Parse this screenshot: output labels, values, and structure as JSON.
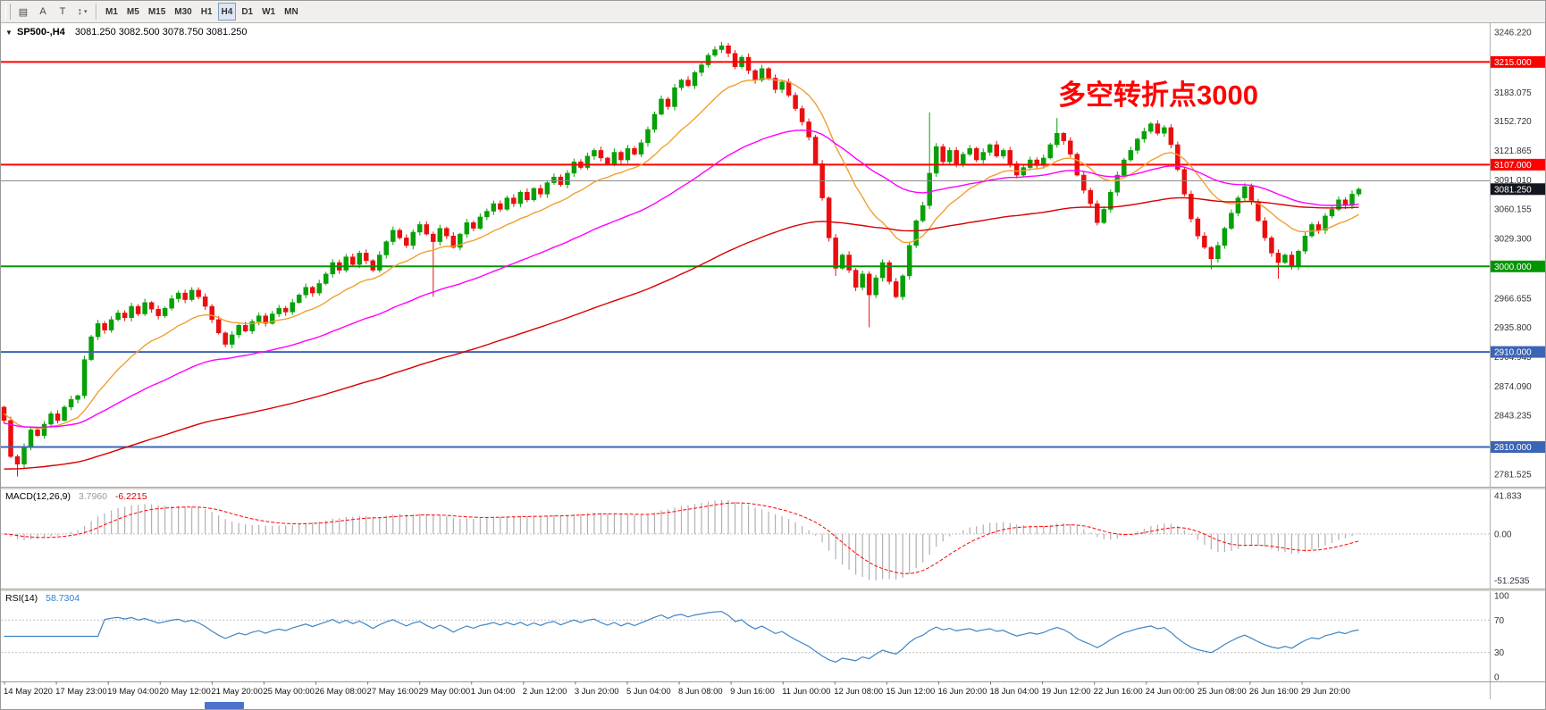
{
  "toolbar": {
    "tools": [
      {
        "name": "chart-mode",
        "glyph": "▤"
      },
      {
        "name": "text-label",
        "glyph": "A"
      },
      {
        "name": "text",
        "glyph": "T"
      },
      {
        "name": "objects",
        "glyph": "↕",
        "dropdown": "▾"
      }
    ],
    "timeframes": [
      {
        "label": "M1",
        "active": false
      },
      {
        "label": "M5",
        "active": false
      },
      {
        "label": "M15",
        "active": false
      },
      {
        "label": "M30",
        "active": false
      },
      {
        "label": "H1",
        "active": false
      },
      {
        "label": "H4",
        "active": true
      },
      {
        "label": "D1",
        "active": false
      },
      {
        "label": "W1",
        "active": false
      },
      {
        "label": "MN",
        "active": false
      }
    ]
  },
  "chart": {
    "title_marker": "▼",
    "title_symbol": "SP500-,H4",
    "title_ohlc": "3081.250 3082.500 3078.750 3081.250",
    "annotation": {
      "text": "多空转折点3000",
      "color": "#ff0000"
    }
  },
  "indicators": {
    "macd": {
      "label": "MACD(12,26,9)",
      "value_main": "3.7960",
      "value_signal": "-6.2215"
    },
    "rsi": {
      "label": "RSI(14)",
      "value": "58.7304"
    }
  },
  "chart_data": {
    "type": "candlestick",
    "symbol": "SP500-",
    "timeframe": "H4",
    "candle_up_color": "#07a007",
    "candle_down_color": "#ea0e0e",
    "open_first": 2852,
    "closes": [
      2838,
      2800,
      2792,
      2810,
      2828,
      2822,
      2834,
      2845,
      2838,
      2852,
      2860,
      2864,
      2902,
      2926,
      2940,
      2933,
      2944,
      2951,
      2946,
      2958,
      2950,
      2962,
      2955,
      2948,
      2956,
      2966,
      2972,
      2965,
      2975,
      2968,
      2958,
      2944,
      2930,
      2918,
      2928,
      2938,
      2932,
      2942,
      2948,
      2940,
      2950,
      2956,
      2952,
      2962,
      2970,
      2978,
      2972,
      2982,
      2992,
      3004,
      2996,
      3010,
      3002,
      3014,
      3006,
      2996,
      3012,
      3026,
      3038,
      3030,
      3022,
      3036,
      3044,
      3034,
      3026,
      3040,
      3032,
      3020,
      3034,
      3046,
      3040,
      3052,
      3058,
      3066,
      3060,
      3072,
      3066,
      3078,
      3070,
      3082,
      3076,
      3088,
      3094,
      3086,
      3098,
      3110,
      3104,
      3116,
      3122,
      3114,
      3108,
      3120,
      3112,
      3124,
      3118,
      3130,
      3144,
      3160,
      3176,
      3168,
      3188,
      3196,
      3190,
      3204,
      3212,
      3222,
      3228,
      3232,
      3224,
      3210,
      3220,
      3206,
      3196,
      3208,
      3198,
      3186,
      3194,
      3180,
      3166,
      3152,
      3136,
      3108,
      3072,
      3030,
      2998,
      3012,
      2996,
      2978,
      2992,
      2970,
      2988,
      3004,
      2984,
      2968,
      2990,
      3022,
      3048,
      3064,
      3098,
      3126,
      3110,
      3122,
      3108,
      3118,
      3124,
      3112,
      3120,
      3128,
      3116,
      3122,
      3108,
      3096,
      3104,
      3112,
      3106,
      3114,
      3128,
      3140,
      3132,
      3118,
      3096,
      3080,
      3066,
      3046,
      3060,
      3078,
      3096,
      3112,
      3122,
      3134,
      3142,
      3150,
      3140,
      3146,
      3128,
      3102,
      3076,
      3050,
      3032,
      3020,
      3008,
      3022,
      3040,
      3056,
      3072,
      3084,
      3068,
      3048,
      3030,
      3014,
      3004,
      3012,
      3000,
      3016,
      3032,
      3044,
      3038,
      3053,
      3060,
      3070,
      3064,
      3076,
      3081.25
    ],
    "wick_overrides": [
      [
        2,
        "low",
        2779
      ],
      [
        64,
        "low",
        2968
      ],
      [
        107,
        "high",
        3236
      ],
      [
        124,
        "low",
        2990
      ],
      [
        129,
        "low",
        2936
      ],
      [
        138,
        "high",
        3162
      ],
      [
        157,
        "high",
        3156
      ],
      [
        180,
        "low",
        2997
      ],
      [
        190,
        "low",
        2987
      ]
    ],
    "last_price": 3081.25,
    "price_axis": {
      "min": 2772,
      "max": 3252,
      "grid_labels": [
        "3246.220",
        "3183.075",
        "3152.720",
        "3121.865",
        "3091.010",
        "3060.155",
        "3029.300",
        "2966.655",
        "2935.800",
        "2904.945",
        "2874.090",
        "2843.235",
        "2781.525"
      ]
    },
    "hlines": [
      {
        "price": 3215.0,
        "label": "3215.000",
        "color": "#ff0000",
        "width": 2
      },
      {
        "price": 3107.0,
        "label": "3107.000",
        "color": "#ff0000",
        "width": 2
      },
      {
        "price": 3090.0,
        "label": null,
        "color": "#8c8c8c",
        "width": 1
      },
      {
        "price": 3000.0,
        "label": "3000.000",
        "color": "#009600",
        "width": 2
      },
      {
        "price": 2910.0,
        "label": "2910.000",
        "color": "#3c64b4",
        "width": 2
      },
      {
        "price": 2810.0,
        "label": "2810.000",
        "color": "#3c64b4",
        "width": 2
      }
    ],
    "current_price_label": {
      "price": 3081.25,
      "label": "3081.250",
      "bg": "#14161f"
    },
    "moving_averages": [
      {
        "name": "ma-fast-orange",
        "color": "#f0a030",
        "alpha": 0.12,
        "seed": 2846
      },
      {
        "name": "ma-mid-magenta",
        "color": "#ff00ff",
        "alpha": 0.04,
        "seed": 2835
      },
      {
        "name": "ma-slow-red",
        "color": "#d80000",
        "alpha": 0.016,
        "seed": 2786
      }
    ],
    "time_axis": [
      "14 May 2020",
      "17 May 23:00",
      "19 May 04:00",
      "20 May 12:00",
      "21 May 20:00",
      "25 May 00:00",
      "26 May 08:00",
      "27 May 16:00",
      "29 May 00:00",
      "1 Jun 04:00",
      "2 Jun 12:00",
      "3 Jun 20:00",
      "5 Jun 04:00",
      "8 Jun 08:00",
      "9 Jun 16:00",
      "11 Jun 00:00",
      "12 Jun 08:00",
      "15 Jun 12:00",
      "16 Jun 20:00",
      "18 Jun 04:00",
      "19 Jun 12:00",
      "22 Jun 16:00",
      "24 Jun 00:00",
      "25 Jun 08:00",
      "26 Jun 16:00",
      "29 Jun 20:00"
    ],
    "macd": {
      "fast": 12,
      "slow": 26,
      "signal": 9,
      "scale": [
        -57,
        46
      ],
      "axis_labels": [
        {
          "text": "41.833",
          "value": 41.833
        },
        {
          "text": "0.00",
          "value": 0
        },
        {
          "text": "-51.2535",
          "value": -51.2535
        }
      ],
      "hist_color": "#b0b0b0",
      "signal_color": "#ff0000"
    },
    "rsi": {
      "period": 14,
      "color": "#3d85c8",
      "axis_labels": [
        {
          "text": "100",
          "value": 100
        },
        {
          "text": "70",
          "value": 70
        },
        {
          "text": "30",
          "value": 30
        },
        {
          "text": "0",
          "value": 0
        }
      ],
      "levels": [
        70,
        30
      ]
    }
  }
}
